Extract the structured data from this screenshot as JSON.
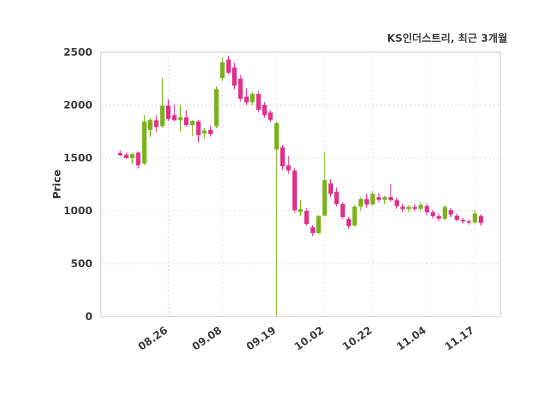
{
  "chart_data": {
    "type": "candlestick",
    "title": "KS인더스트리, 최근 3개월",
    "ylabel": "Price",
    "xlabel": "",
    "ylim": [
      0,
      2500
    ],
    "yticks": [
      0,
      500,
      1000,
      1500,
      2000,
      2500
    ],
    "grid": true,
    "grid_style": "dashed",
    "up_color": "#7ab21b",
    "down_color": "#e1308a",
    "border_color": "#c8c8c8",
    "grid_color": "#d8d8d8",
    "text_color": "#3d3d3d",
    "xticks": [
      {
        "index": 8,
        "label": "08.26"
      },
      {
        "index": 17,
        "label": "09.08"
      },
      {
        "index": 26,
        "label": "09.19"
      },
      {
        "index": 34,
        "label": "10.02"
      },
      {
        "index": 42,
        "label": "10.22"
      },
      {
        "index": 51,
        "label": "11.04"
      },
      {
        "index": 59,
        "label": "11.17"
      }
    ],
    "candles": [
      [
        1545,
        1570,
        1520,
        1525
      ],
      [
        1530,
        1550,
        1490,
        1500
      ],
      [
        1500,
        1545,
        1445,
        1535
      ],
      [
        1550,
        1560,
        1400,
        1430
      ],
      [
        1445,
        1905,
        1435,
        1845
      ],
      [
        1765,
        1875,
        1700,
        1860
      ],
      [
        1855,
        1905,
        1745,
        1790
      ],
      [
        1800,
        2255,
        1785,
        1995
      ],
      [
        1995,
        2050,
        1850,
        1870
      ],
      [
        1905,
        2005,
        1845,
        1855
      ],
      [
        1855,
        2000,
        1750,
        1885
      ],
      [
        1885,
        1950,
        1795,
        1810
      ],
      [
        1810,
        1860,
        1705,
        1850
      ],
      [
        1845,
        1855,
        1650,
        1715
      ],
      [
        1730,
        1785,
        1680,
        1760
      ],
      [
        1765,
        1805,
        1700,
        1725
      ],
      [
        1800,
        2175,
        1780,
        2150
      ],
      [
        2255,
        2455,
        2230,
        2405
      ],
      [
        2430,
        2465,
        2290,
        2305
      ],
      [
        2355,
        2400,
        2150,
        2185
      ],
      [
        2250,
        2285,
        2030,
        2060
      ],
      [
        2080,
        2155,
        2000,
        2025
      ],
      [
        2025,
        2120,
        2000,
        2105
      ],
      [
        2105,
        2135,
        1930,
        1955
      ],
      [
        2000,
        2025,
        1880,
        1905
      ],
      [
        1930,
        1950,
        1840,
        1860
      ],
      [
        1580,
        1845,
        0,
        1830
      ],
      [
        1600,
        1625,
        1385,
        1420
      ],
      [
        1430,
        1520,
        1350,
        1380
      ],
      [
        1380,
        1400,
        985,
        1005
      ],
      [
        990,
        1105,
        950,
        1015
      ],
      [
        1000,
        1025,
        855,
        875
      ],
      [
        845,
        865,
        760,
        790
      ],
      [
        790,
        960,
        780,
        950
      ],
      [
        955,
        1560,
        945,
        1290
      ],
      [
        1260,
        1300,
        1130,
        1160
      ],
      [
        1180,
        1220,
        1040,
        1065
      ],
      [
        1065,
        1085,
        920,
        940
      ],
      [
        920,
        940,
        830,
        855
      ],
      [
        860,
        1060,
        850,
        1040
      ],
      [
        1040,
        1130,
        1000,
        1110
      ],
      [
        1110,
        1160,
        1030,
        1060
      ],
      [
        1060,
        1185,
        1050,
        1160
      ],
      [
        1130,
        1165,
        1085,
        1105
      ],
      [
        1105,
        1140,
        1065,
        1130
      ],
      [
        1130,
        1255,
        1085,
        1100
      ],
      [
        1100,
        1125,
        1020,
        1045
      ],
      [
        1040,
        1065,
        990,
        1015
      ],
      [
        1015,
        1055,
        985,
        1040
      ],
      [
        1035,
        1060,
        1000,
        1020
      ],
      [
        1020,
        1085,
        995,
        1055
      ],
      [
        1045,
        1065,
        955,
        985
      ],
      [
        985,
        1005,
        930,
        950
      ],
      [
        950,
        975,
        900,
        925
      ],
      [
        925,
        1055,
        915,
        1035
      ],
      [
        1005,
        1025,
        940,
        965
      ],
      [
        955,
        975,
        900,
        915
      ],
      [
        915,
        935,
        880,
        900
      ],
      [
        900,
        915,
        870,
        890
      ],
      [
        890,
        1005,
        870,
        975
      ],
      [
        950,
        965,
        860,
        885
      ]
    ]
  }
}
